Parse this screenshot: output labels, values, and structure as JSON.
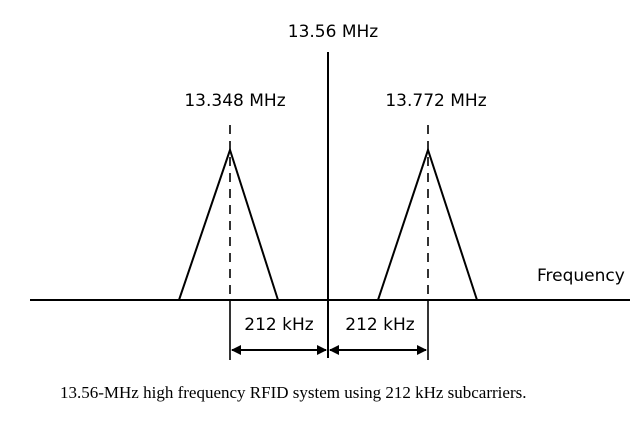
{
  "diagram": {
    "carrier_label": "13.56 MHz",
    "lower_sideband_label": "13.348 MHz",
    "upper_sideband_label": "13.772 MHz",
    "axis_label": "Frequency",
    "lower_spacing_label": "212 kHz",
    "upper_spacing_label": "212 kHz",
    "line_color": "#000000"
  },
  "caption": "13.56-MHz high frequency RFID system using 212 kHz subcarriers."
}
